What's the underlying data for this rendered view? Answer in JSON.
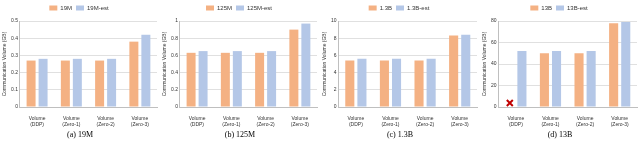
{
  "chart_data": [
    {
      "type": "bar",
      "title": "(a) 19M",
      "y_label": "Communication Volume (GB)",
      "categories": [
        "Volume (DDP)",
        "Volume (Zero-1)",
        "Volume (Zero-2)",
        "Volume (Zero-3)"
      ],
      "series": [
        {
          "name": "19M",
          "color": "#f4b183",
          "values": [
            0.27,
            0.27,
            0.27,
            0.38
          ]
        },
        {
          "name": "19M-est",
          "color": "#b4c7e7",
          "values": [
            0.28,
            0.28,
            0.28,
            0.42
          ]
        }
      ],
      "ylim": [
        0,
        0.5
      ],
      "yticks": [
        0,
        0.1,
        0.2,
        0.3,
        0.4,
        0.5
      ],
      "grid": true,
      "legend": "top"
    },
    {
      "type": "bar",
      "title": "(b) 125M",
      "y_label": "Communication Volume (GB)",
      "categories": [
        "Volume (DDP)",
        "Volume (Zero-1)",
        "Volume (Zero-2)",
        "Volume (Zero-3)"
      ],
      "series": [
        {
          "name": "125M",
          "color": "#f4b183",
          "values": [
            0.63,
            0.63,
            0.63,
            0.9
          ]
        },
        {
          "name": "125M-est",
          "color": "#b4c7e7",
          "values": [
            0.65,
            0.65,
            0.65,
            0.97
          ]
        }
      ],
      "ylim": [
        0,
        1
      ],
      "yticks": [
        0,
        0.2,
        0.4,
        0.6,
        0.8,
        1
      ],
      "grid": true,
      "legend": "top"
    },
    {
      "type": "bar",
      "title": "(c) 1.3B",
      "y_label": "Communication Volume (GB)",
      "categories": [
        "Volume (DDP)",
        "Volume (Zero-1)",
        "Volume (Zero-2)",
        "Volume (Zero-3)"
      ],
      "series": [
        {
          "name": "1.3B",
          "color": "#f4b183",
          "values": [
            5.4,
            5.4,
            5.4,
            8.3
          ]
        },
        {
          "name": "1.3B-est",
          "color": "#b4c7e7",
          "values": [
            5.6,
            5.6,
            5.6,
            8.4
          ]
        }
      ],
      "ylim": [
        0,
        10
      ],
      "yticks": [
        0,
        2,
        4,
        6,
        8,
        10
      ],
      "grid": true,
      "legend": "top"
    },
    {
      "type": "bar",
      "title": "(d) 13B",
      "y_label": "Communication Volume (GB)",
      "categories": [
        "Volume (DDP)",
        "Volume (Zero-1)",
        "Volume (Zero-2)",
        "Volume (Zero-3)"
      ],
      "series": [
        {
          "name": "13B",
          "color": "#f4b183",
          "values": [
            null,
            50,
            50,
            78
          ]
        },
        {
          "name": "13B-est",
          "color": "#b4c7e7",
          "values": [
            52,
            52,
            52,
            79
          ]
        }
      ],
      "ylim": [
        0,
        80
      ],
      "yticks": [
        0,
        20,
        40,
        60,
        80
      ],
      "grid": true,
      "legend": "top"
    }
  ]
}
